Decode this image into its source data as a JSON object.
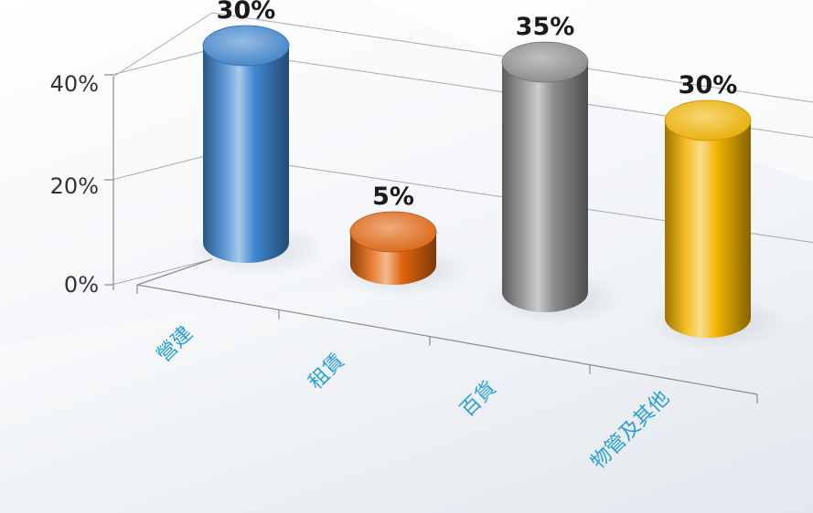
{
  "chart_data": {
    "type": "bar",
    "style": "3d-cylinder",
    "categories": [
      "營建",
      "租賃",
      "百貨",
      "物管及其他"
    ],
    "values": [
      30,
      5,
      35,
      30
    ],
    "data_labels": [
      "30%",
      "5%",
      "35%",
      "30%"
    ],
    "yticks": [
      "0%",
      "20%",
      "40%"
    ],
    "ytick_values": [
      0,
      20,
      40
    ],
    "ylim": [
      0,
      40
    ],
    "grid": true,
    "legend": "none",
    "colors": [
      "#3f86cf",
      "#e2660f",
      "#8d8d8d",
      "#f2b400"
    ]
  }
}
